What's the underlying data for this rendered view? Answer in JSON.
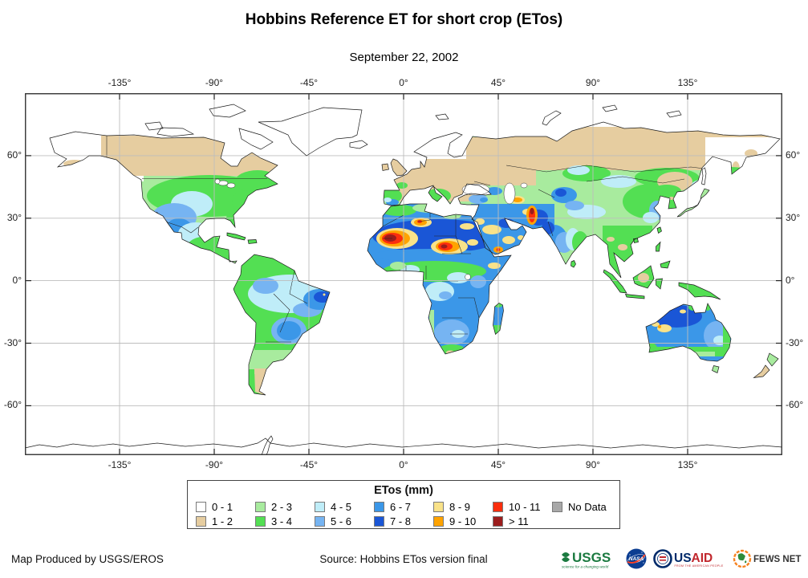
{
  "title": "Hobbins Reference ET for short crop (ETos)",
  "subtitle": "September 22, 2002",
  "map": {
    "x_ticks": [
      "-135°",
      "-90°",
      "-45°",
      "0°",
      "45°",
      "90°",
      "135°"
    ],
    "y_ticks": [
      "60°",
      "30°",
      "0°",
      "-30°",
      "-60°"
    ]
  },
  "legend": {
    "title": "ETos (mm)",
    "items": [
      {
        "label": "0 - 1",
        "color": "#ffffff"
      },
      {
        "label": "1 - 2",
        "color": "#e6cda0"
      },
      {
        "label": "2 - 3",
        "color": "#a8eb9e"
      },
      {
        "label": "3 - 4",
        "color": "#53df53"
      },
      {
        "label": "4 - 5",
        "color": "#bfedf8"
      },
      {
        "label": "5 - 6",
        "color": "#76b4f2"
      },
      {
        "label": "6 - 7",
        "color": "#3b97e8"
      },
      {
        "label": "7 - 8",
        "color": "#1a56d6"
      },
      {
        "label": "8 - 9",
        "color": "#f9e289"
      },
      {
        "label": "9 - 10",
        "color": "#ffa300"
      },
      {
        "label": "10 - 11",
        "color": "#fb2e0d"
      },
      {
        "label": "> 11",
        "color": "#9b1d1d"
      },
      {
        "label": "No Data",
        "color": "#a8a8a8"
      }
    ]
  },
  "footer": {
    "credit": "Map Produced by USGS/EROS",
    "source": "Source: Hobbins ETos version final"
  },
  "logos": {
    "usgs": {
      "text": "USGS",
      "tagline": "science for a changing world",
      "color": "#1b7a40"
    },
    "nasa": {
      "text": "NASA",
      "color": "#0b3d91"
    },
    "usaid": {
      "text_us": "US",
      "text_aid": "AID",
      "tagline": "FROM THE AMERICAN PEOPLE",
      "blue": "#002a6a",
      "red": "#c1272d"
    },
    "fewsnet": {
      "text": "FEWS NET",
      "orange": "#f58220",
      "green": "#2e8b3a"
    }
  }
}
